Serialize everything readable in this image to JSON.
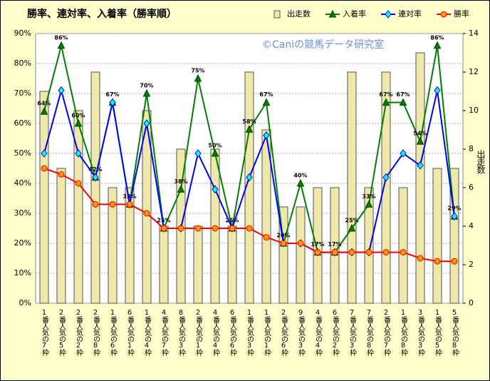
{
  "chart_data": {
    "type": "combo",
    "title": "勝率、連対率、入着率（勝率順）",
    "annotation": "©Caniの競馬データ研究室",
    "y2_label": "出走数",
    "categories": [
      "1番人気の7枠",
      "2番人気の5枠",
      "2番人気の2枠",
      "2番人気の8枠",
      "1番人気の6枠",
      "6番人気の1枠",
      "1番人気の4枠",
      "4番人気の7枠",
      "8番人気の3枠",
      "2番人気の1枠",
      "4番人気の4枠",
      "6番人気の6枠",
      "1番人気の3枠",
      "1番人気の1枠",
      "2番人気の6枠",
      "9番人気の3枠",
      "4番人気の4枠",
      "6番人気の2枠",
      "7番人気の3枠",
      "7番人気の8枠",
      "2番人気の7枠",
      "1番人気の8枠",
      "3番人気の3枠",
      "1番人気の5枠",
      "5番人気の8枠"
    ],
    "series": [
      {
        "name": "出走数",
        "type": "bar",
        "axis": "y2",
        "color": "#eee8aa",
        "values": [
          11,
          7,
          10,
          12,
          6,
          6,
          10,
          4,
          8,
          4,
          8,
          4,
          12,
          9,
          5,
          5,
          6,
          6,
          12,
          6,
          12,
          6,
          13,
          7,
          7
        ]
      },
      {
        "name": "入着率",
        "type": "line",
        "marker": "triangle",
        "color": "#008000",
        "values": [
          64,
          86,
          60,
          42,
          67,
          33,
          70,
          25,
          38,
          75,
          50,
          25,
          58,
          67,
          20,
          40,
          17,
          17,
          25,
          33,
          67,
          67,
          54,
          86,
          29
        ],
        "value_labels": [
          "64%",
          "86%",
          "60%",
          "42%",
          "67%",
          "33%",
          "70%",
          "25%",
          "38%",
          "75%",
          "50%",
          "25%",
          "58%",
          "67%",
          "20%",
          "40%",
          "17%",
          "17%",
          "25%",
          "33%",
          "67%",
          "67%",
          "54%",
          "86%",
          "29%"
        ]
      },
      {
        "name": "連対率",
        "type": "line",
        "marker": "diamond",
        "color": "#0000ff",
        "values": [
          50,
          71,
          50,
          42,
          67,
          33,
          60,
          25,
          25,
          50,
          38,
          25,
          42,
          56,
          20,
          20,
          17,
          17,
          17,
          17,
          42,
          50,
          46,
          71,
          29
        ]
      },
      {
        "name": "勝率",
        "type": "line",
        "marker": "circle",
        "color": "#ff0000",
        "values": [
          45,
          43,
          40,
          33,
          33,
          33,
          30,
          25,
          25,
          25,
          25,
          25,
          25,
          22,
          20,
          20,
          17,
          17,
          17,
          17,
          17,
          17,
          15,
          14,
          14
        ]
      }
    ],
    "ylim": [
      0,
      90
    ],
    "yticks": [
      {
        "value": 0,
        "label": "0%"
      },
      {
        "value": 10,
        "label": "10%"
      },
      {
        "value": 20,
        "label": "20%"
      },
      {
        "value": 30,
        "label": "30%"
      },
      {
        "value": 40,
        "label": "40%"
      },
      {
        "value": 50,
        "label": "50%"
      },
      {
        "value": 60,
        "label": "60%"
      },
      {
        "value": 70,
        "label": "70%"
      },
      {
        "value": 80,
        "label": "80%"
      },
      {
        "value": 90,
        "label": "90%"
      }
    ],
    "y2lim": [
      0,
      14
    ],
    "y2ticks": [
      0,
      2,
      4,
      6,
      8,
      10,
      12,
      14
    ],
    "grid": true
  }
}
